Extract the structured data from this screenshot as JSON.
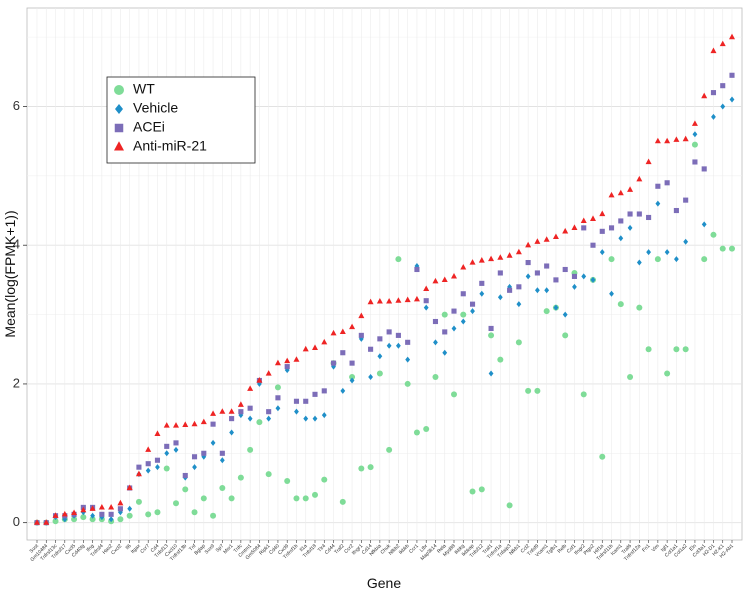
{
  "chart_data": {
    "type": "scatter",
    "x_label": "Gene",
    "y_label": "Mean(log(FPMK+1))",
    "categories": [
      "Sost",
      "Gm10484",
      "Tnfrsf13c",
      "Tnfrsf17",
      "Cxcl5",
      "Cd40lg",
      "Ifng",
      "Tnfrsf4",
      "Has2",
      "Cxcl2",
      "Il6",
      "Itgax",
      "Ccr7",
      "Cd4",
      "Tnfsf13",
      "Cxcl10",
      "Tnfrsf13b",
      "Tnf",
      "Bglap",
      "Sox9",
      "Sp7",
      "Msr1",
      "Tnfc",
      "Cmtm1",
      "Gm5084",
      "Ripk1",
      "Cd40",
      "Cxcl9",
      "Tnfrsf1b",
      "Il1a",
      "Tnfsf18",
      "Tlr4",
      "Cd44",
      "Traf2",
      "Ccr2",
      "Ifngr1",
      "Cd14",
      "Nfkbia",
      "Chuk",
      "Nfkb2",
      "Ikbkb",
      "Ccr1",
      "Ltbr",
      "Map3k14",
      "Rela",
      "Myd88",
      "Ikbkg",
      "Ikbkap",
      "Tnfsf12",
      "Traf1",
      "Tnfrsf1a",
      "Tnfaip3",
      "Nfkb1",
      "Ccl2",
      "Tnfsf9",
      "Vcam1",
      "Tgfb1",
      "Relb",
      "Csf1",
      "Ifngr2",
      "Ptgs2",
      "Hif1a",
      "Tnfrsf11b",
      "Icam1",
      "Traf6",
      "Tnfrsf12a",
      "Fn1",
      "Vim",
      "Igf1",
      "Col1a1",
      "Col1a2",
      "Eln",
      "Col3a1",
      "H2-D1",
      "H2-K1",
      "H2-Ab1"
    ],
    "series": [
      {
        "name": "WT",
        "color": "#7fdc98",
        "marker": "circle",
        "values": [
          0,
          0,
          0.02,
          0.05,
          0.05,
          0.08,
          0.05,
          0.05,
          0.02,
          0.05,
          0.1,
          0.3,
          0.12,
          0.15,
          0.78,
          0.28,
          0.48,
          0.15,
          0.35,
          0.1,
          0.5,
          0.35,
          0.65,
          1.05,
          1.45,
          0.7,
          1.95,
          0.6,
          0.35,
          0.35,
          0.4,
          0.62,
          2.3,
          0.3,
          2.1,
          0.78,
          0.8,
          2.15,
          1.05,
          3.8,
          2.0,
          1.3,
          1.35,
          2.1,
          3.0,
          1.85,
          3.0,
          0.45,
          0.48,
          2.7,
          2.35,
          0.25,
          2.6,
          1.9,
          1.9,
          3.05,
          3.1,
          2.7,
          3.6,
          1.85,
          3.5,
          0.95,
          3.8,
          3.15,
          2.1,
          3.1,
          2.5,
          3.8,
          2.15,
          2.5,
          2.5,
          5.45,
          3.8,
          4.15,
          3.95,
          3.95
        ]
      },
      {
        "name": "Vehicle",
        "color": "#1f8fc8",
        "marker": "diamond",
        "values": [
          0,
          0,
          0.08,
          0.05,
          0.1,
          0.15,
          0.1,
          0.08,
          0.05,
          0.15,
          0.2,
          0.7,
          0.75,
          0.8,
          1.0,
          1.05,
          0.65,
          0.8,
          0.95,
          1.15,
          0.9,
          1.3,
          1.55,
          1.5,
          2.0,
          1.5,
          1.65,
          2.2,
          1.6,
          1.5,
          1.5,
          1.55,
          2.25,
          1.9,
          2.05,
          2.65,
          2.1,
          2.4,
          2.55,
          2.55,
          2.35,
          3.7,
          3.1,
          2.6,
          2.45,
          2.8,
          2.9,
          3.05,
          3.3,
          2.15,
          3.25,
          3.4,
          3.15,
          3.55,
          3.35,
          3.35,
          3.1,
          3.0,
          3.4,
          3.55,
          3.5,
          3.9,
          3.3,
          4.1,
          4.25,
          3.75,
          3.9,
          4.6,
          3.9,
          3.8,
          4.05,
          5.6,
          4.3,
          5.85,
          6.0,
          6.1
        ]
      },
      {
        "name": "ACEi",
        "color": "#7c6db8",
        "marker": "square",
        "values": [
          0,
          0,
          0.1,
          0.1,
          0.12,
          0.22,
          0.22,
          0.12,
          0.12,
          0.2,
          0.5,
          0.8,
          0.85,
          0.9,
          1.1,
          1.15,
          0.68,
          0.95,
          1.0,
          1.42,
          1.0,
          1.5,
          1.6,
          1.65,
          2.05,
          1.6,
          1.8,
          2.25,
          1.75,
          1.75,
          1.85,
          1.9,
          2.3,
          2.45,
          2.3,
          2.7,
          2.5,
          2.65,
          2.75,
          2.7,
          2.6,
          3.65,
          3.2,
          2.9,
          2.75,
          3.05,
          3.3,
          3.15,
          3.45,
          2.8,
          3.6,
          3.35,
          3.4,
          3.75,
          3.6,
          3.7,
          3.5,
          3.65,
          3.55,
          4.25,
          4.0,
          4.2,
          4.25,
          4.35,
          4.45,
          4.45,
          4.4,
          4.85,
          4.9,
          4.5,
          4.65,
          5.2,
          5.1,
          6.2,
          6.3,
          6.45
        ]
      },
      {
        "name": "Anti-miR-21",
        "color": "#ee2424",
        "marker": "triangle",
        "values": [
          0,
          0,
          0.1,
          0.12,
          0.14,
          0.18,
          0.2,
          0.22,
          0.22,
          0.28,
          0.5,
          0.7,
          1.05,
          1.28,
          1.4,
          1.4,
          1.41,
          1.42,
          1.45,
          1.57,
          1.6,
          1.6,
          1.7,
          1.93,
          2.05,
          2.15,
          2.3,
          2.33,
          2.35,
          2.5,
          2.52,
          2.6,
          2.73,
          2.75,
          2.82,
          2.98,
          3.18,
          3.19,
          3.19,
          3.2,
          3.21,
          3.22,
          3.37,
          3.48,
          3.5,
          3.55,
          3.68,
          3.75,
          3.78,
          3.8,
          3.82,
          3.85,
          3.9,
          4.0,
          4.05,
          4.08,
          4.12,
          4.2,
          4.25,
          4.35,
          4.38,
          4.45,
          4.72,
          4.75,
          4.8,
          4.95,
          5.2,
          5.5,
          5.5,
          5.52,
          5.53,
          5.75,
          6.15,
          6.8,
          6.9,
          7.0
        ]
      }
    ],
    "ylim": [
      -0.25,
      7.42
    ],
    "yticks": [
      0,
      2,
      4,
      6
    ],
    "grid": true,
    "legend": "top-left"
  }
}
